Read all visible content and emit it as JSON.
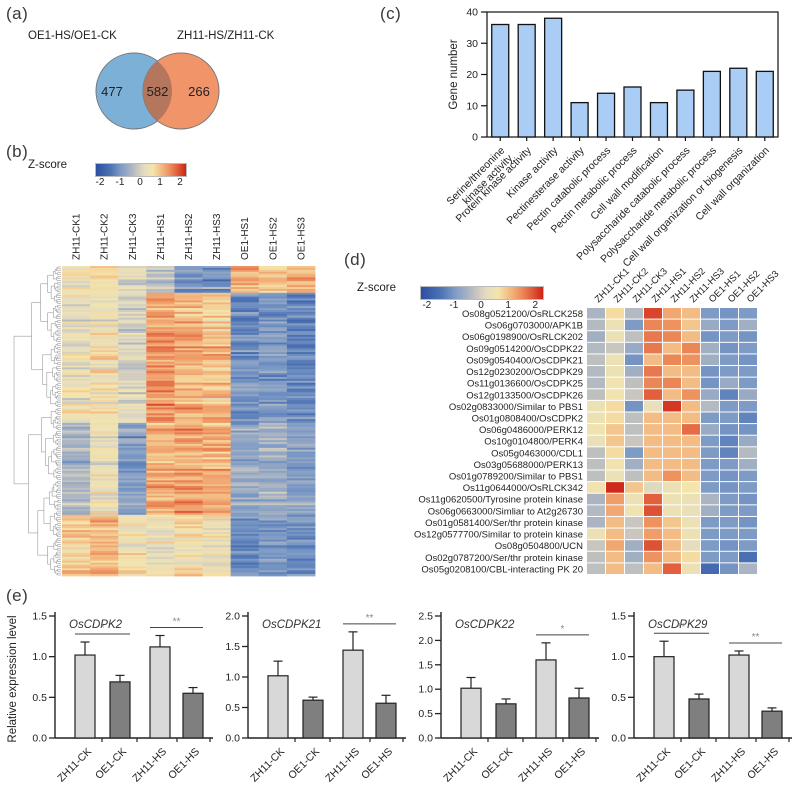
{
  "labels": {
    "a": "(a)",
    "b": "(b)",
    "c": "(c)",
    "d": "(d)",
    "e": "(e)"
  },
  "colors": {
    "venn_left_fill": "#7db0d6",
    "venn_right_fill": "#f0946a",
    "venn_overlap_fill": "#b4765c",
    "venn_stroke": "#777777",
    "bar_fill_c": "#a9cdf4",
    "bar_stroke": "#111111",
    "bar_light": "#d8d8d8",
    "bar_dark": "#7f7f7f",
    "axis_color": "#222222",
    "sig_line_color": "#444444",
    "sig_star_color": "#888888",
    "dendrogram_color": "#9b9b9b",
    "heatmap_stops": [
      [
        -2.25,
        "#2b4fa0"
      ],
      [
        -1.5,
        "#4f74b5"
      ],
      [
        -1.0,
        "#7e9bc6"
      ],
      [
        -0.5,
        "#aab4c2"
      ],
      [
        -0.15,
        "#cdc9bf"
      ],
      [
        0.15,
        "#e3dcc0"
      ],
      [
        0.6,
        "#f4e5ab"
      ],
      [
        1.0,
        "#f3bc84"
      ],
      [
        1.4,
        "#ee9260"
      ],
      [
        1.8,
        "#e2603c"
      ],
      [
        2.25,
        "#cd2318"
      ]
    ]
  },
  "chart_data": [
    {
      "id": "a",
      "type": "venn",
      "left_label": "OE1-HS/OE1-CK",
      "right_label": "ZH11-HS/ZH11-CK",
      "left_only": "477",
      "overlap": "582",
      "right_only": "266"
    },
    {
      "id": "b",
      "type": "heatmap",
      "colorbar_label": "Z-score",
      "colorbar_ticks": [
        "-2",
        "-1",
        "0",
        "1",
        "2"
      ],
      "zlim": [
        -2.25,
        2.25
      ],
      "columns": [
        "ZH11-CK1",
        "ZH11-CK2",
        "ZH11-CK3",
        "ZH11-HS1",
        "ZH11-HS2",
        "ZH11-HS3",
        "OE1-HS1",
        "OE1-HS2",
        "OE1-HS3"
      ],
      "seed": 11,
      "bands": [
        {
          "rows": 14,
          "means": [
            0.4,
            0.7,
            0.2,
            -0.2,
            -0.9,
            -1.0,
            1.2,
            1.0,
            1.1
          ],
          "noise": 0.55
        },
        {
          "rows": 68,
          "means": [
            0.3,
            0.5,
            0.0,
            1.3,
            1.1,
            0.95,
            -1.15,
            -1.0,
            -1.25
          ],
          "noise": 0.55
        },
        {
          "rows": 48,
          "means": [
            -0.45,
            0.35,
            -0.85,
            1.15,
            1.3,
            1.1,
            -0.75,
            -0.6,
            -0.85
          ],
          "noise": 0.5
        },
        {
          "rows": 32,
          "means": [
            0.9,
            1.1,
            0.55,
            0.35,
            0.6,
            0.35,
            -1.1,
            -1.0,
            -1.2
          ],
          "noise": 0.55
        }
      ],
      "has_dendrogram": true
    },
    {
      "id": "c",
      "type": "bar",
      "ylabel": "Gene number",
      "ylim": [
        0,
        40
      ],
      "yticks": [
        0,
        10,
        20,
        30,
        40
      ],
      "categories": [
        "Serine/threonine\nkinase activity",
        "Protein kinase activity",
        "Kinase activity",
        "Pectinesterase activity",
        "Pectin catabolic process",
        "Pectin metabolic process",
        "Cell wall modification",
        "Polysaccharide catabolic process",
        "Polysaccharide metabolic process",
        "Cell wall organization or biogenesis",
        "Cell wall organization"
      ],
      "values": [
        36,
        36,
        38,
        11,
        14,
        16,
        11,
        15,
        21,
        22,
        21
      ]
    },
    {
      "id": "d",
      "type": "heatmap",
      "colorbar_label": "Z-score",
      "colorbar_ticks": [
        "-2",
        "-1",
        "0",
        "1",
        "2"
      ],
      "zlim": [
        -2.25,
        2.25
      ],
      "columns": [
        "ZH11-CK1",
        "ZH11-CK2",
        "ZH11-CK3",
        "ZH11-HS1",
        "ZH11-HS2",
        "ZH11-HS3",
        "OE1-HS1",
        "OE1-HS2",
        "OE1-HS3"
      ],
      "rows": [
        {
          "label": "Os08g0521200/OsRLCK258",
          "values": [
            -0.5,
            0.7,
            -0.4,
            2.0,
            1.2,
            1.0,
            -1.0,
            -1.1,
            -1.0
          ]
        },
        {
          "label": "Os06g0703000/APK1B",
          "values": [
            -0.4,
            0.4,
            -1.0,
            1.5,
            1.4,
            0.9,
            -0.7,
            -1.0,
            -0.6
          ]
        },
        {
          "label": "Os06g0198900/OsRLCK202",
          "values": [
            -0.6,
            0.4,
            -0.3,
            1.6,
            1.5,
            1.0,
            -1.1,
            -1.0,
            -1.1
          ]
        },
        {
          "label": "Os09g0514200/OsCDPK22",
          "values": [
            -0.4,
            -0.2,
            -0.7,
            1.6,
            1.0,
            1.5,
            -0.6,
            -1.1,
            -1.0
          ]
        },
        {
          "label": "Os09g0540400/OsCDPK21",
          "values": [
            -0.3,
            0.4,
            -1.1,
            1.0,
            1.5,
            1.4,
            -0.6,
            -1.0,
            -1.1
          ]
        },
        {
          "label": "Os12g0230200/OsCDPK29",
          "values": [
            -0.4,
            0.4,
            -0.6,
            1.6,
            1.0,
            1.0,
            -1.1,
            -1.0,
            -1.0
          ]
        },
        {
          "label": "Os11g0136600/OsCDPK25",
          "values": [
            -0.4,
            0.5,
            -0.3,
            1.5,
            1.5,
            1.0,
            -1.1,
            -0.7,
            -1.0
          ]
        },
        {
          "label": "Os12g0133500/OsCDPK26",
          "values": [
            -0.3,
            0.5,
            -0.2,
            1.8,
            1.0,
            1.4,
            -0.7,
            -1.3,
            -0.7
          ]
        },
        {
          "label": "Os02g0833000/Similar to PBS1",
          "values": [
            0.4,
            0.7,
            -1.1,
            0.3,
            2.1,
            1.0,
            -0.4,
            -1.0,
            -1.0
          ]
        },
        {
          "label": "Os01g0808400/OsCDPK2",
          "values": [
            0.4,
            0.7,
            -0.3,
            1.0,
            1.0,
            1.0,
            -1.0,
            -1.0,
            -1.3
          ]
        },
        {
          "label": "Os06g0486000/PERK12",
          "values": [
            0.5,
            0.9,
            -0.3,
            1.0,
            1.0,
            1.7,
            -0.7,
            -1.1,
            -1.1
          ]
        },
        {
          "label": "Os10g0104800/PERK4",
          "values": [
            0.3,
            0.9,
            -0.2,
            1.0,
            1.0,
            1.0,
            -1.0,
            -1.3,
            -0.7
          ]
        },
        {
          "label": "Os05g0463000/CDL1",
          "values": [
            -0.3,
            0.7,
            -1.0,
            1.0,
            1.0,
            1.0,
            -1.0,
            -1.3,
            -0.4
          ]
        },
        {
          "label": "Os03g05688000/PERK13",
          "values": [
            -0.3,
            0.5,
            -0.6,
            1.0,
            1.0,
            1.0,
            -1.0,
            -1.0,
            -0.6
          ]
        },
        {
          "label": "Os01g0789200/Similar to PBS1",
          "values": [
            -0.3,
            0.4,
            -0.3,
            1.0,
            1.4,
            1.0,
            -1.0,
            -1.1,
            -1.0
          ]
        },
        {
          "label": "Os11g0644000/OsRLCK342",
          "values": [
            0.5,
            2.2,
            0.9,
            0.1,
            0.4,
            0.6,
            -1.0,
            -1.1,
            -1.0
          ]
        },
        {
          "label": "Os11g0620500/Tyrosine protein kinase",
          "values": [
            -0.5,
            1.3,
            0.4,
            1.8,
            0.4,
            0.4,
            -0.5,
            -1.0,
            -1.1
          ]
        },
        {
          "label": "Os06g0663000/Simliar to At2g26730",
          "values": [
            -0.4,
            1.2,
            0.5,
            1.9,
            0.4,
            0.3,
            -0.6,
            -1.0,
            -1.0
          ]
        },
        {
          "label": "Os01g0581400/Ser/thr protein kinase",
          "values": [
            -0.5,
            1.0,
            -0.2,
            1.4,
            0.9,
            0.4,
            -1.0,
            -1.0,
            -1.1
          ]
        },
        {
          "label": "Os12g0577700/Similar to protein kinase",
          "values": [
            0.4,
            1.0,
            -0.2,
            1.3,
            1.0,
            0.4,
            -1.0,
            -1.0,
            -1.0
          ]
        },
        {
          "label": "Os08g0504800/UCN",
          "values": [
            -0.2,
            1.2,
            -0.6,
            1.9,
            1.0,
            0.2,
            -1.0,
            -1.1,
            -1.0
          ]
        },
        {
          "label": "Os02g0787200/Ser/thr protein kinase",
          "values": [
            -0.3,
            1.0,
            -0.6,
            1.4,
            1.0,
            0.7,
            -1.0,
            -1.0,
            -1.6
          ]
        },
        {
          "label": "Os05g0208100/CBL-interacting PK 20",
          "values": [
            -0.3,
            1.0,
            -0.3,
            1.0,
            1.8,
            0.4,
            -1.7,
            -1.1,
            -0.5
          ]
        }
      ]
    },
    {
      "id": "e",
      "type": "bar-group",
      "ylabel": "Relative expression level",
      "categories": [
        "ZH11-CK",
        "OE1-CK",
        "ZH11-HS",
        "OE1-HS"
      ],
      "charts": [
        {
          "title": "OsCDPK2",
          "ylim": 1.5,
          "ystep": 0.5,
          "values": [
            1.02,
            0.69,
            1.12,
            0.55
          ],
          "errors": [
            0.16,
            0.08,
            0.14,
            0.07
          ],
          "sig": [
            {
              "a": 0,
              "b": 1,
              "label": "*"
            },
            {
              "a": 2,
              "b": 3,
              "label": "**"
            }
          ]
        },
        {
          "title": "OsCDPK21",
          "ylim": 2.0,
          "ystep": 0.5,
          "values": [
            1.02,
            0.62,
            1.44,
            0.57
          ],
          "errors": [
            0.24,
            0.05,
            0.3,
            0.13
          ],
          "sig": [
            {
              "a": 2,
              "b": 3,
              "label": "**"
            }
          ]
        },
        {
          "title": "OsCDPK22",
          "ylim": 2.5,
          "ystep": 0.5,
          "values": [
            1.02,
            0.7,
            1.6,
            0.82
          ],
          "errors": [
            0.22,
            0.1,
            0.35,
            0.2
          ],
          "sig": [
            {
              "a": 2,
              "b": 3,
              "label": "*"
            }
          ]
        },
        {
          "title": "OsCDPK29",
          "ylim": 1.5,
          "ystep": 0.5,
          "values": [
            1.0,
            0.48,
            1.02,
            0.33
          ],
          "errors": [
            0.19,
            0.06,
            0.05,
            0.04
          ],
          "sig": [
            {
              "a": 0,
              "b": 1,
              "label": "**"
            },
            {
              "a": 2,
              "b": 3,
              "label": "**"
            }
          ]
        }
      ]
    }
  ]
}
